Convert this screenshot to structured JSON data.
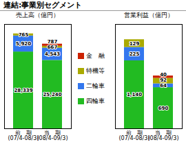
{
  "title": "連結:事業別セグメント",
  "chart_data": [
    {
      "type": "bar",
      "stacked": true,
      "title": "売上高（億円）",
      "categories": [
        "前　期\n(07/4-08/3)",
        "当　期\n(08/4-09/3)"
      ],
      "series": [
        {
          "name": "四輪車",
          "color": "#22bb22",
          "values": [
            28339,
            25240
          ],
          "value_labels": [
            "28,339",
            "25,240"
          ]
        },
        {
          "name": "二輪車",
          "color": "#3377ee",
          "values": [
            5920,
            4543
          ],
          "value_labels": [
            "5,920",
            "4,543"
          ]
        },
        {
          "name": "特機等",
          "color": "#aaaa00",
          "values": [
            765,
            667
          ]
        },
        {
          "name": "金　融",
          "color": "#cc2200",
          "values": [
            null,
            787
          ]
        }
      ],
      "ylim": [
        0,
        38500
      ],
      "data_labels": true,
      "tick_labels": "x",
      "legend": "right"
    },
    {
      "type": "bar",
      "stacked": true,
      "title": "営業利益（億円）",
      "categories": [
        "前　期\n(07/4-08/3)",
        "当　期\n(08/4-09/3)"
      ],
      "series": [
        {
          "name": "四輪車",
          "color": "#22bb22",
          "values": [
            1140,
            690
          ],
          "value_labels": [
            "1,140",
            "690"
          ]
        },
        {
          "name": "二輪車",
          "color": "#3377ee",
          "values": [
            225,
            64
          ]
        },
        {
          "name": "特機等",
          "color": "#aaaa00",
          "values": [
            129,
            92
          ]
        },
        {
          "name": "金　融",
          "color": "#cc2200",
          "values": [
            null,
            40
          ]
        }
      ],
      "ylim": [
        0,
        1750
      ],
      "data_labels": true,
      "tick_labels": "x"
    }
  ]
}
